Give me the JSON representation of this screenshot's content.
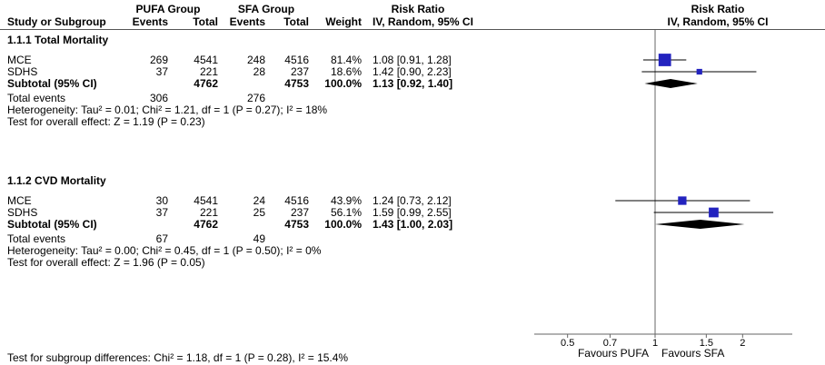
{
  "header": {
    "pufa_group": "PUFA Group",
    "sfa_group": "SFA Group",
    "risk_ratio": "Risk Ratio",
    "study_or_subgroup": "Study or Subgroup",
    "events": "Events",
    "total": "Total",
    "weight": "Weight",
    "method": "IV, Random, 95% CI"
  },
  "footer": {
    "subgroup_differences": "Test for subgroup differences: Chi² = 1.18, df = 1 (P = 0.28), I² = 15.4%"
  },
  "chart_data": {
    "type": "forest",
    "effect_measure": "Risk Ratio",
    "model": "IV, Random, 95% CI",
    "marker_color": "#2323bf",
    "diamond_color": "#000000",
    "x_axis": {
      "scale": "log",
      "ticks": [
        0.5,
        0.7,
        1,
        1.5,
        2
      ],
      "left_label": "Favours PUFA",
      "right_label": "Favours SFA"
    },
    "subgroups": [
      {
        "name": "1.1.1 Total Mortality",
        "studies": [
          {
            "study": "MCE",
            "pufa_events": "269",
            "pufa_total": "4541",
            "sfa_events": "248",
            "sfa_total": "4516",
            "weight": "81.4%",
            "weight_value": 81.4,
            "rr": 1.08,
            "ci_low": 0.91,
            "ci_high": 1.28,
            "ci_text": "1.08 [0.91, 1.28]"
          },
          {
            "study": "SDHS",
            "pufa_events": "37",
            "pufa_total": "221",
            "sfa_events": "28",
            "sfa_total": "237",
            "weight": "18.6%",
            "weight_value": 18.6,
            "rr": 1.42,
            "ci_low": 0.9,
            "ci_high": 2.23,
            "ci_text": "1.42 [0.90, 2.23]"
          }
        ],
        "subtotal": {
          "label": "Subtotal (95% CI)",
          "pufa_total": "4762",
          "sfa_total": "4753",
          "weight": "100.0%",
          "rr": 1.13,
          "ci_low": 0.92,
          "ci_high": 1.4,
          "ci_text": "1.13 [0.92, 1.40]"
        },
        "total_events": {
          "label": "Total events",
          "pufa": "306",
          "sfa": "276"
        },
        "heterogeneity": "Heterogeneity: Tau² = 0.01; Chi² = 1.21, df = 1 (P = 0.27); I² = 18%",
        "overall_effect": "Test for overall effect: Z = 1.19 (P = 0.23)"
      },
      {
        "name": "1.1.2 CVD Mortality",
        "studies": [
          {
            "study": "MCE",
            "pufa_events": "30",
            "pufa_total": "4541",
            "sfa_events": "24",
            "sfa_total": "4516",
            "weight": "43.9%",
            "weight_value": 43.9,
            "rr": 1.24,
            "ci_low": 0.73,
            "ci_high": 2.12,
            "ci_text": "1.24 [0.73, 2.12]"
          },
          {
            "study": "SDHS",
            "pufa_events": "37",
            "pufa_total": "221",
            "sfa_events": "25",
            "sfa_total": "237",
            "weight": "56.1%",
            "weight_value": 56.1,
            "rr": 1.59,
            "ci_low": 0.99,
            "ci_high": 2.55,
            "ci_text": "1.59 [0.99, 2.55]"
          }
        ],
        "subtotal": {
          "label": "Subtotal (95% CI)",
          "pufa_total": "4762",
          "sfa_total": "4753",
          "weight": "100.0%",
          "rr": 1.43,
          "ci_low": 1.0,
          "ci_high": 2.03,
          "ci_text": "1.43 [1.00, 2.03]"
        },
        "total_events": {
          "label": "Total events",
          "pufa": "67",
          "sfa": "49"
        },
        "heterogeneity": "Heterogeneity: Tau² = 0.00; Chi² = 0.45, df = 1 (P = 0.50); I² = 0%",
        "overall_effect": "Test for overall effect: Z = 1.96 (P = 0.05)"
      }
    ]
  }
}
